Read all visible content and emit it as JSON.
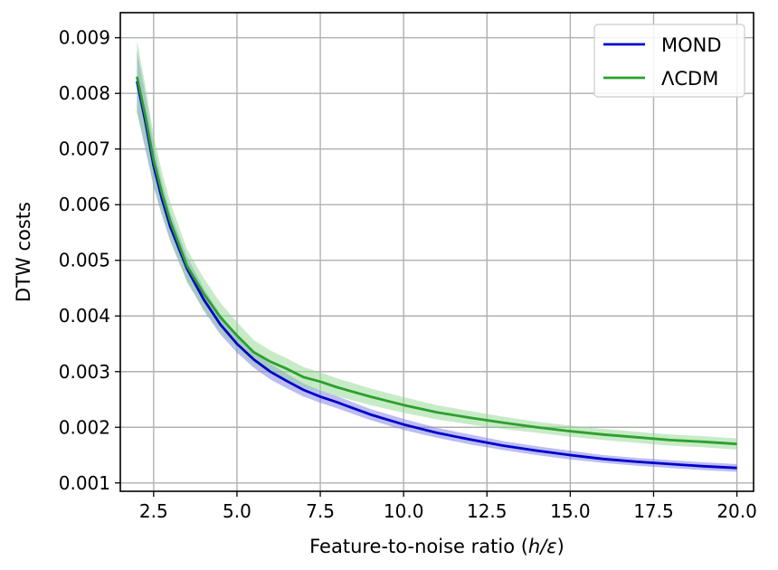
{
  "chart_data": {
    "type": "line",
    "title": "",
    "xlabel": "Feature-to-noise ratio (",
    "xlabel_math": "h/ε",
    "xlabel_suffix": ")",
    "ylabel": "DTW costs",
    "xlim": [
      1.5,
      20.5
    ],
    "ylim": [
      0.00085,
      0.00945
    ],
    "xticks": [
      2.5,
      5.0,
      7.5,
      10.0,
      12.5,
      15.0,
      17.5,
      20.0
    ],
    "xtick_labels": [
      "2.5",
      "5.0",
      "7.5",
      "10.0",
      "12.5",
      "15.0",
      "17.5",
      "20.0"
    ],
    "yticks": [
      0.001,
      0.002,
      0.003,
      0.004,
      0.005,
      0.006,
      0.007,
      0.008,
      0.009
    ],
    "ytick_labels": [
      "0.001",
      "0.002",
      "0.003",
      "0.004",
      "0.005",
      "0.006",
      "0.007",
      "0.008",
      "0.009"
    ],
    "grid": true,
    "legend_position": "top-right",
    "x": [
      2.0,
      2.25,
      2.5,
      2.75,
      3.0,
      3.5,
      4.0,
      4.5,
      5.0,
      5.5,
      6.0,
      6.5,
      7.0,
      7.5,
      8.0,
      9.0,
      10.0,
      11.0,
      12.0,
      13.0,
      14.0,
      15.0,
      16.0,
      17.0,
      18.0,
      19.0,
      20.0
    ],
    "series": [
      {
        "name": "MOND",
        "color": "#0000cc",
        "band_color": "#7b7be6",
        "values": [
          0.00822,
          0.0075,
          0.0067,
          0.0061,
          0.0056,
          0.00485,
          0.0043,
          0.00385,
          0.0035,
          0.00322,
          0.003,
          0.00283,
          0.00267,
          0.00255,
          0.00245,
          0.00223,
          0.00205,
          0.0019,
          0.00178,
          0.00167,
          0.00158,
          0.0015,
          0.00143,
          0.00138,
          0.00134,
          0.0013,
          0.00127
        ],
        "band": [
          0.00055,
          0.0005,
          0.00038,
          0.0003,
          0.00026,
          0.00022,
          0.0002,
          0.00018,
          0.00016,
          0.00015,
          0.00014,
          0.00013,
          0.00012,
          0.00011,
          0.00011,
          0.0001,
          0.0001,
          9e-05,
          9e-05,
          8e-05,
          8e-05,
          8e-05,
          7e-05,
          7e-05,
          7e-05,
          7e-05,
          7e-05
        ]
      },
      {
        "name": "ΛCDM",
        "color": "#2ca02c",
        "band_color": "#8fd88f",
        "values": [
          0.0083,
          0.0076,
          0.0068,
          0.0062,
          0.0057,
          0.0049,
          0.0044,
          0.00398,
          0.00365,
          0.00335,
          0.00318,
          0.00305,
          0.0029,
          0.00282,
          0.00272,
          0.00255,
          0.0024,
          0.00227,
          0.00217,
          0.00208,
          0.002,
          0.00193,
          0.00187,
          0.00182,
          0.00177,
          0.00174,
          0.0017
        ],
        "band": [
          0.00065,
          0.00055,
          0.00045,
          0.00038,
          0.00034,
          0.0003,
          0.00028,
          0.00026,
          0.00024,
          0.00022,
          0.0002,
          0.00019,
          0.00018,
          0.00017,
          0.00016,
          0.00015,
          0.00014,
          0.00013,
          0.00012,
          0.00011,
          0.0001,
          0.0001,
          0.0001,
          0.0001,
          0.0001,
          0.0001,
          0.0001
        ]
      }
    ]
  }
}
